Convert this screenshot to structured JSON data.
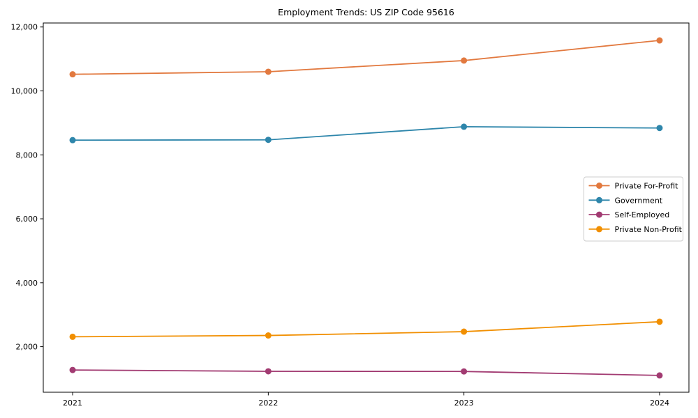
{
  "chart_data": {
    "type": "line",
    "title": "Employment Trends: US ZIP Code 95616",
    "x": [
      2021,
      2022,
      2023,
      2024
    ],
    "x_tick_labels": [
      "2021",
      "2022",
      "2023",
      "2024"
    ],
    "xlim": [
      2020.85,
      2024.15
    ],
    "ylim": [
      575,
      12125
    ],
    "y_ticks": [
      2000,
      4000,
      6000,
      8000,
      10000,
      12000
    ],
    "y_tick_labels": [
      "2,000",
      "4,000",
      "6,000",
      "8,000",
      "10,000",
      "12,000"
    ],
    "grid": false,
    "marker": "circle",
    "legend_position": "center right",
    "axis_color": "#000000",
    "legend_border_color": "#cccccc",
    "background_color": "#ffffff",
    "series": [
      {
        "name": "Private For-Profit",
        "color": "#E2793F",
        "values": [
          10520,
          10600,
          10950,
          11580
        ]
      },
      {
        "name": "Government",
        "color": "#2E86AB",
        "values": [
          8460,
          8470,
          8880,
          8840
        ]
      },
      {
        "name": "Self-Employed",
        "color": "#A23B72",
        "values": [
          1270,
          1230,
          1225,
          1100
        ]
      },
      {
        "name": "Private Non-Profit",
        "color": "#F18F01",
        "values": [
          2310,
          2350,
          2470,
          2780
        ]
      }
    ]
  }
}
